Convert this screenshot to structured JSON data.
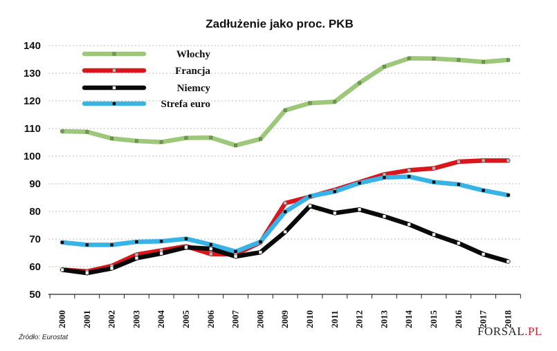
{
  "chart_data": {
    "type": "line",
    "title": "Zadłużenie jako proc. PKB",
    "xlabel": "",
    "ylabel": "",
    "ylim": [
      50,
      140
    ],
    "yticks": [
      50,
      60,
      70,
      80,
      90,
      100,
      110,
      120,
      130,
      140
    ],
    "grid": "horizontal-dotted",
    "legend_position": "top-left",
    "categories": [
      "2000",
      "2001",
      "2002",
      "2003",
      "2004",
      "2005",
      "2006",
      "2007",
      "2008",
      "2009",
      "2010",
      "2011",
      "2012",
      "2013",
      "2014",
      "2015",
      "2016",
      "2017",
      "2018"
    ],
    "series": [
      {
        "name": "Włochy",
        "color": "#9dc87a",
        "marker": "#6f9b4e",
        "values": [
          109.0,
          108.8,
          106.4,
          105.5,
          105.1,
          106.6,
          106.7,
          103.9,
          106.2,
          116.6,
          119.2,
          119.7,
          126.5,
          132.4,
          135.4,
          135.3,
          134.8,
          134.1,
          134.8
        ]
      },
      {
        "name": "Francja",
        "color": "#d9161b",
        "marker": "#bbbbbb",
        "values": [
          58.9,
          58.3,
          60.3,
          64.4,
          65.9,
          67.4,
          64.6,
          64.5,
          68.8,
          83.0,
          85.3,
          87.8,
          90.6,
          93.4,
          94.9,
          95.6,
          98.0,
          98.4,
          98.4
        ]
      },
      {
        "name": "Niemcy",
        "color": "#0a0a0a",
        "marker": "#ffffff",
        "values": [
          58.9,
          57.7,
          59.4,
          63.1,
          64.8,
          67.0,
          66.5,
          63.7,
          65.2,
          72.6,
          82.0,
          79.4,
          80.7,
          78.2,
          75.3,
          71.6,
          68.5,
          64.5,
          61.9
        ]
      },
      {
        "name": "Strefa euro",
        "color": "#37b3e6",
        "marker": "#0a0a0a",
        "values": [
          68.8,
          67.9,
          67.9,
          69.0,
          69.2,
          70.1,
          68.0,
          65.5,
          69.0,
          79.9,
          85.5,
          87.2,
          90.3,
          92.3,
          92.6,
          90.6,
          89.8,
          87.6,
          85.9
        ]
      }
    ],
    "source": "Źródło: Eurostat"
  },
  "logo": {
    "text_before": "FORSAL",
    "text_after": ".PL"
  }
}
